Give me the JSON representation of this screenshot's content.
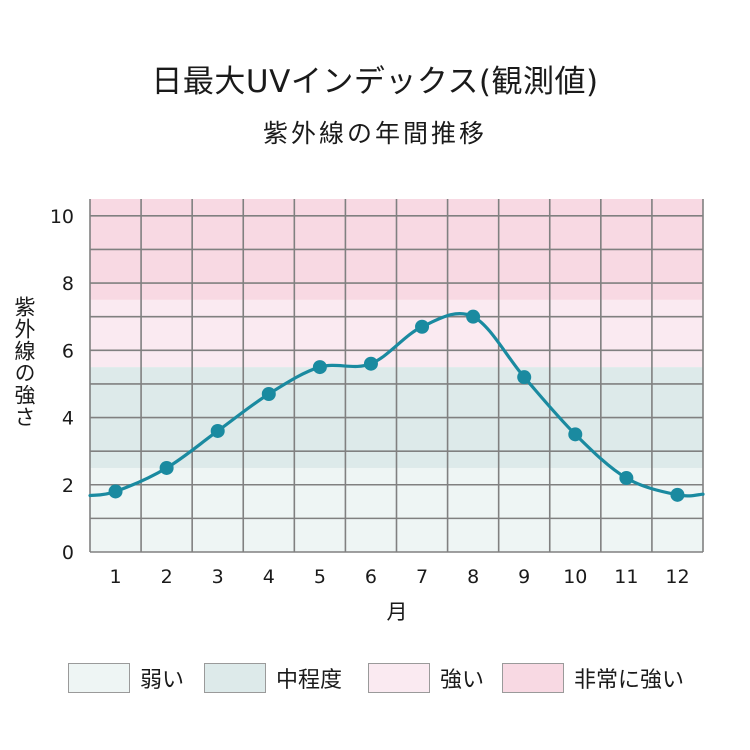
{
  "title": "日最大UVインデックス(観測値)",
  "subtitle": "紫外線の年間推移",
  "colors": {
    "weak": "#eef5f4",
    "moderate": "#ddeaea",
    "strong": "#faeaf1",
    "very_strong": "#f8d9e3",
    "line": "#1a8aa0",
    "grid": "#808080"
  },
  "legend": [
    {
      "label": "弱い",
      "color": "#eef5f4"
    },
    {
      "label": "中程度",
      "color": "#ddeaea"
    },
    {
      "label": "強い",
      "color": "#faeaf1"
    },
    {
      "label": "非常に強い",
      "color": "#f8d9e3"
    }
  ],
  "chart_data": {
    "type": "line",
    "title": "日最大UVインデックス(観測値)",
    "subtitle": "紫外線の年間推移",
    "xlabel": "月",
    "ylabel": "紫外線の強さ",
    "categories": [
      "1",
      "2",
      "3",
      "4",
      "5",
      "6",
      "7",
      "8",
      "9",
      "10",
      "11",
      "12"
    ],
    "yticks": [
      "0",
      "2",
      "4",
      "6",
      "8",
      "10"
    ],
    "ylim": [
      0,
      10.5
    ],
    "grid": true,
    "series": [
      {
        "values": [
          1.8,
          2.5,
          3.6,
          4.7,
          5.5,
          5.6,
          6.7,
          7.0,
          5.2,
          3.5,
          2.2,
          1.7
        ]
      }
    ],
    "bands": [
      {
        "label": "弱い",
        "from": 0,
        "to": 2.5
      },
      {
        "label": "中程度",
        "from": 2.5,
        "to": 5.5
      },
      {
        "label": "強い",
        "from": 5.5,
        "to": 7.5
      },
      {
        "label": "非常に強い",
        "from": 7.5,
        "to": 10.5
      }
    ],
    "legend_position": "bottom"
  }
}
